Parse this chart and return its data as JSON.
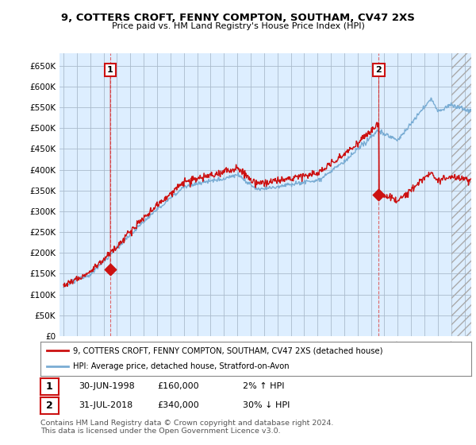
{
  "title": "9, COTTERS CROFT, FENNY COMPTON, SOUTHAM, CV47 2XS",
  "subtitle": "Price paid vs. HM Land Registry's House Price Index (HPI)",
  "ytick_values": [
    0,
    50000,
    100000,
    150000,
    200000,
    250000,
    300000,
    350000,
    400000,
    450000,
    500000,
    550000,
    600000,
    650000
  ],
  "ylim": [
    0,
    680000
  ],
  "xlim_start": 1994.7,
  "xlim_end": 2025.5,
  "hpi_color": "#7aadd4",
  "price_color": "#cc1111",
  "plot_bg_color": "#ddeeff",
  "fig_bg_color": "#ffffff",
  "grid_color": "#aabbcc",
  "vline_color": "#dd4444",
  "marker1_date": 1998.5,
  "marker1_value": 160000,
  "marker2_date": 2018.58,
  "marker2_value": 340000,
  "legend_line1": "9, COTTERS CROFT, FENNY COMPTON, SOUTHAM, CV47 2XS (detached house)",
  "legend_line2": "HPI: Average price, detached house, Stratford-on-Avon",
  "table_row1": [
    "1",
    "30-JUN-1998",
    "£160,000",
    "2% ↑ HPI"
  ],
  "table_row2": [
    "2",
    "31-JUL-2018",
    "£340,000",
    "30% ↓ HPI"
  ],
  "footer": "Contains HM Land Registry data © Crown copyright and database right 2024.\nThis data is licensed under the Open Government Licence v3.0.",
  "annotation_box_color": "#cc1111",
  "hatch_start": 2024.0
}
